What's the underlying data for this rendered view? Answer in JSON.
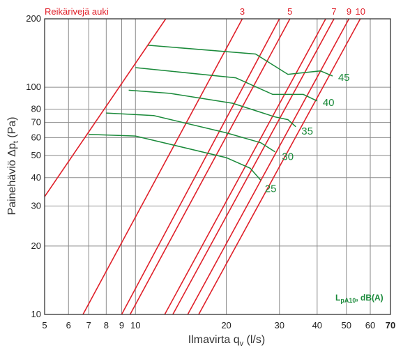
{
  "chart_data": {
    "type": "line",
    "xlabel": "Ilmavirta q",
    "xlabel_sub": "v",
    "xlabel_unit": " (l/s)",
    "ylabel": "Painehäviö Δp",
    "ylabel_sub": "t",
    "ylabel_unit": " (Pa)",
    "x_scale": "log",
    "y_scale": "log",
    "xlim": [
      5,
      70
    ],
    "ylim": [
      10,
      200
    ],
    "grid": true,
    "x_ticks": [
      5,
      6,
      7,
      8,
      9,
      10,
      20,
      30,
      40,
      50,
      60,
      70
    ],
    "x_tick_labels": [
      "5",
      "6",
      "7",
      "8",
      "9",
      "10",
      "20",
      "30",
      "40",
      "50",
      "60",
      "70"
    ],
    "y_ticks": [
      10,
      20,
      30,
      40,
      50,
      60,
      70,
      80,
      100,
      200
    ],
    "y_tick_labels": [
      "10",
      "20",
      "30",
      "40",
      "50",
      "60",
      "70",
      "80",
      "100",
      "200"
    ],
    "damper_title": "Reikärivejä auki",
    "sound_note": "L",
    "sound_note_sub": "pA10",
    "sound_note_unit": ", dB(A)",
    "damper_lines": [
      {
        "name": "Reikärivejä auki",
        "points": [
          [
            5,
            33
          ],
          [
            12.6,
            200
          ]
        ]
      },
      {
        "name": "3",
        "points": [
          [
            6.7,
            10
          ],
          [
            22.6,
            200
          ]
        ]
      },
      {
        "name": "",
        "points": [
          [
            9.0,
            10
          ],
          [
            30.0,
            200
          ]
        ]
      },
      {
        "name": "5",
        "points": [
          [
            9.6,
            10
          ],
          [
            32.5,
            200
          ]
        ]
      },
      {
        "name": "",
        "points": [
          [
            12.5,
            10
          ],
          [
            42.7,
            200
          ]
        ]
      },
      {
        "name": "7",
        "points": [
          [
            13.3,
            10
          ],
          [
            45.5,
            200
          ]
        ]
      },
      {
        "name": "9",
        "points": [
          [
            14.9,
            10
          ],
          [
            51.0,
            200
          ]
        ]
      },
      {
        "name": "10",
        "points": [
          [
            16.2,
            10
          ],
          [
            55.6,
            200
          ]
        ]
      }
    ],
    "series": [
      {
        "name": "25",
        "points": [
          [
            7,
            62
          ],
          [
            10,
            61
          ],
          [
            20,
            49
          ],
          [
            24,
            44
          ],
          [
            26,
            39
          ]
        ]
      },
      {
        "name": "30",
        "points": [
          [
            8,
            77
          ],
          [
            11.5,
            75
          ],
          [
            20,
            63
          ],
          [
            26,
            57
          ],
          [
            29,
            52
          ]
        ]
      },
      {
        "name": "35",
        "points": [
          [
            9.5,
            97
          ],
          [
            13,
            94
          ],
          [
            21,
            85
          ],
          [
            29,
            74
          ],
          [
            32,
            72
          ],
          [
            34,
            67
          ]
        ]
      },
      {
        "name": "40",
        "points": [
          [
            10,
            122
          ],
          [
            21.5,
            110
          ],
          [
            28.5,
            93
          ],
          [
            36,
            93
          ],
          [
            40,
            87
          ]
        ]
      },
      {
        "name": "45",
        "points": [
          [
            11,
            153
          ],
          [
            25,
            140
          ],
          [
            32,
            114
          ],
          [
            41,
            118
          ],
          [
            45,
            112
          ]
        ]
      }
    ],
    "colors": {
      "damper": "#e0202a",
      "sound": "#1a8a3a",
      "grid": "#8c8c8c",
      "axis": "#222222"
    }
  }
}
